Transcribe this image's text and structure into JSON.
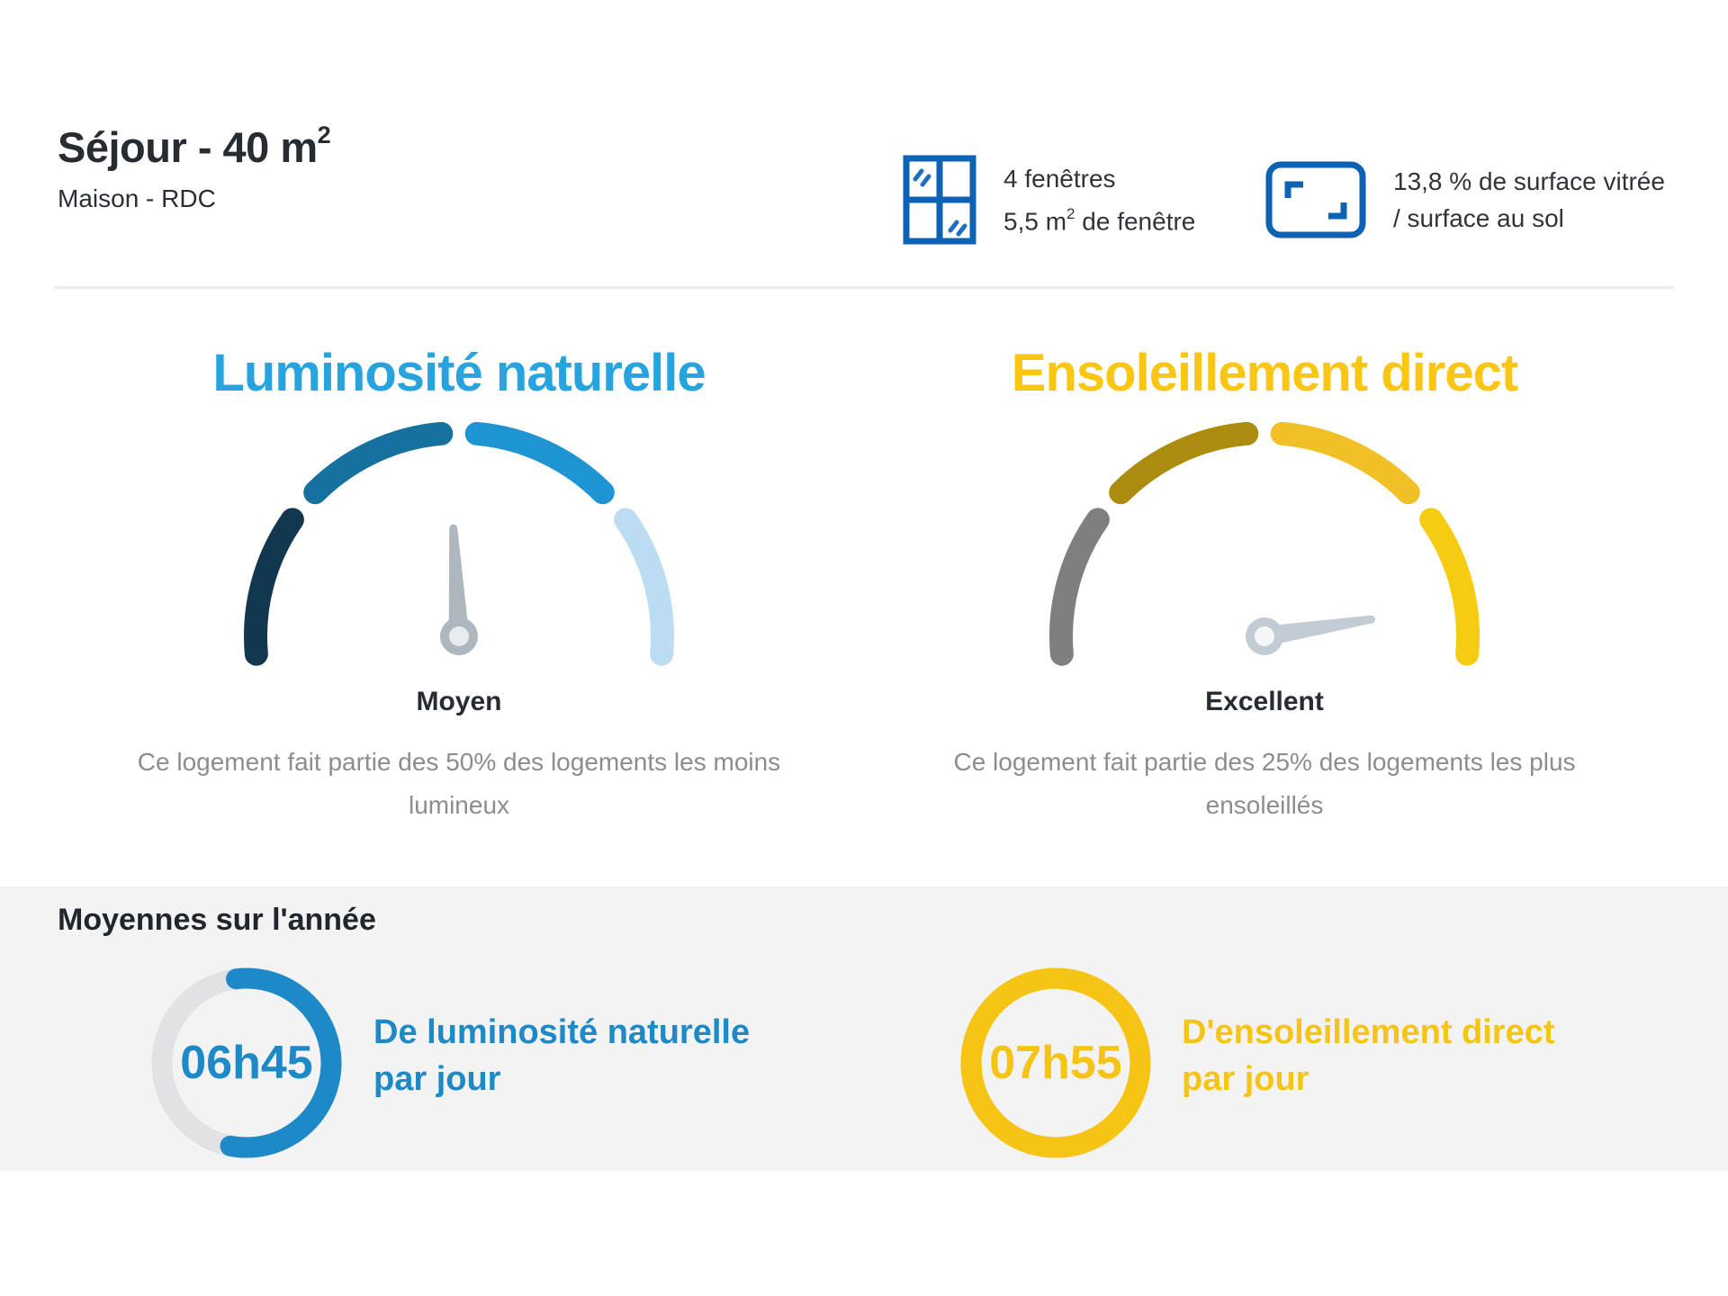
{
  "header": {
    "room_title": "Séjour - 40 m",
    "room_title_sup": "2",
    "room_subtitle": "Maison - RDC",
    "window_stat": {
      "icon": "window-icon",
      "line1": "4 fenêtres",
      "line2_pre": "5,5 m",
      "line2_sup": "2",
      "line2_post": " de fenêtre"
    },
    "glazing_stat": {
      "icon": "glazed-surface-icon",
      "line1": "13,8 % de surface vitrée",
      "line2": "/ surface au sol"
    }
  },
  "chart_data": [
    {
      "type": "gauge",
      "title": "Luminosité naturelle",
      "title_color": "#27A4DE",
      "rating": "Moyen",
      "description": "Ce logement fait partie des 50% des logements les moins lumineux",
      "segment_colors": [
        "#12374E",
        "#17719E",
        "#1F94D2",
        "#BCDDF1"
      ],
      "needle_angle_deg": -3,
      "needle_color": "#AEB7BE",
      "needle_hub_color": "#E9ECEF",
      "arc": {
        "start_deg": -95,
        "segment_span_deg": 40,
        "gap_deg": 10
      }
    },
    {
      "type": "gauge",
      "title": "Ensoleillement direct",
      "title_color": "#F9C713",
      "rating": "Excellent",
      "description": "Ce logement fait partie des 25% des logements les plus ensoleillés",
      "segment_colors": [
        "#7F7F7F",
        "#AC8C0E",
        "#F1BF26",
        "#F6CC12"
      ],
      "needle_angle_deg": 81,
      "needle_color": "#C3CCD4",
      "needle_hub_color": "#F4F6F8",
      "arc": {
        "start_deg": -95,
        "segment_span_deg": 40,
        "gap_deg": 10
      }
    },
    {
      "type": "ring",
      "value": "06h45",
      "label_line1": "De luminosité naturelle",
      "label_line2": "par jour",
      "color": "#1D89C6",
      "track_color": "#E2E2E6",
      "fill_pct": 55,
      "start_deg": -7
    },
    {
      "type": "ring",
      "value": "07h55",
      "label_line1": "D'ensoleillement direct",
      "label_line2": "par jour",
      "color": "#F5C414",
      "track_color": "#F5C414",
      "fill_pct": 100,
      "start_deg": 0
    }
  ],
  "averages": {
    "title": "Moyennes sur l'année"
  }
}
